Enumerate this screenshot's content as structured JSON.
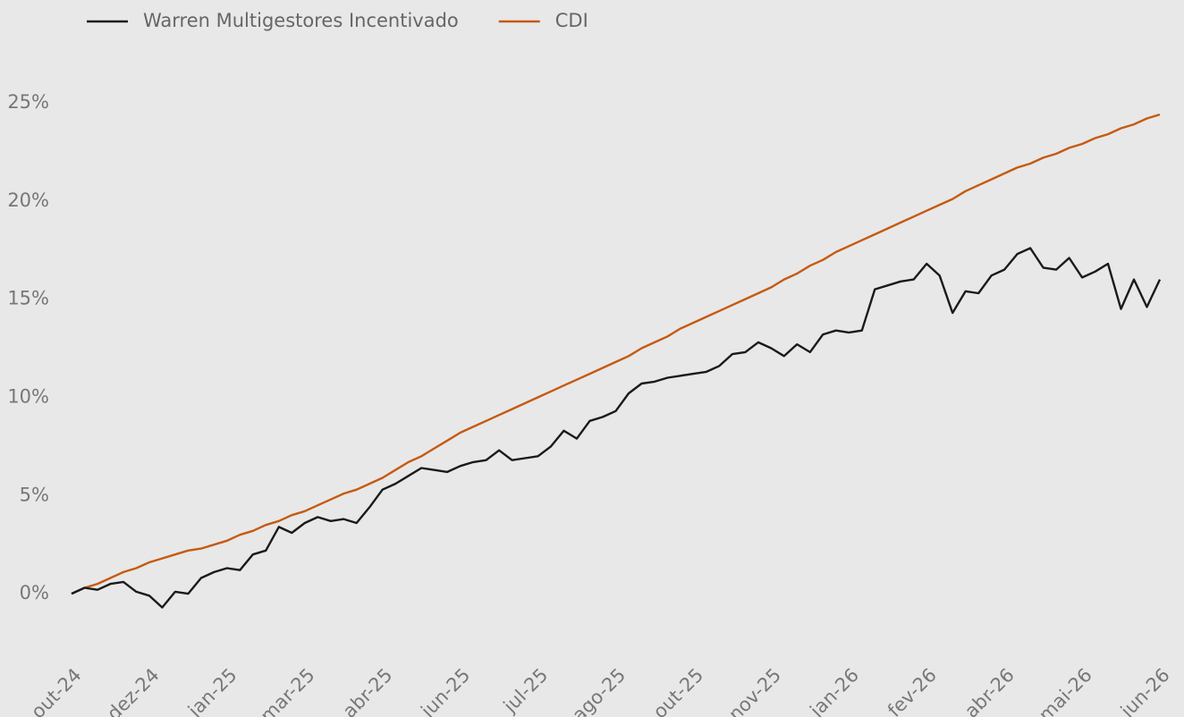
{
  "chart_data": {
    "type": "line",
    "categories": [
      "out-24",
      null,
      null,
      null,
      null,
      null,
      "dez-24",
      null,
      null,
      null,
      null,
      null,
      "jan-25",
      null,
      null,
      null,
      null,
      null,
      "mar-25",
      null,
      null,
      null,
      null,
      null,
      "abr-25",
      null,
      null,
      null,
      null,
      null,
      "jun-25",
      null,
      null,
      null,
      null,
      null,
      "jul-25",
      null,
      null,
      null,
      null,
      null,
      "ago-25",
      null,
      null,
      null,
      null,
      null,
      "out-25",
      null,
      null,
      null,
      null,
      null,
      "nov-25",
      null,
      null,
      null,
      null,
      null,
      "jan-26",
      null,
      null,
      null,
      null,
      null,
      "fev-26",
      null,
      null,
      null,
      null,
      null,
      "abr-26",
      null,
      null,
      null,
      null,
      null,
      "mai-26",
      null,
      null,
      null,
      null,
      null,
      "jun-26"
    ],
    "series": [
      {
        "name": "Warren Multigestores Incentivado",
        "color": "#1a1a1a",
        "values": [
          0,
          0.3,
          0.2,
          0.5,
          0.6,
          0.1,
          -0.1,
          -0.7,
          0.1,
          0,
          0.8,
          1.1,
          1.3,
          1.2,
          2.0,
          2.2,
          3.4,
          3.1,
          3.6,
          3.9,
          3.7,
          3.8,
          3.6,
          4.4,
          5.3,
          5.6,
          6.0,
          6.4,
          6.3,
          6.2,
          6.5,
          6.7,
          6.8,
          7.3,
          6.8,
          6.9,
          7.0,
          7.5,
          8.3,
          7.9,
          8.8,
          9.0,
          9.3,
          10.2,
          10.7,
          10.8,
          11.0,
          11.1,
          11.2,
          11.3,
          11.6,
          12.2,
          12.3,
          12.8,
          12.5,
          12.1,
          12.7,
          12.3,
          13.2,
          13.4,
          13.3,
          13.4,
          15.5,
          15.7,
          15.9,
          16.0,
          16.8,
          16.2,
          14.3,
          15.4,
          15.3,
          16.2,
          16.5,
          17.3,
          17.6,
          16.6,
          16.5,
          17.1,
          16.1,
          16.4,
          16.8,
          14.5,
          16.0,
          14.6,
          16.0
        ]
      },
      {
        "name": "CDI",
        "color": "#c55a11",
        "values": [
          0,
          0.3,
          0.5,
          0.8,
          1.1,
          1.3,
          1.6,
          1.8,
          2.0,
          2.2,
          2.3,
          2.5,
          2.7,
          3.0,
          3.2,
          3.5,
          3.7,
          4.0,
          4.2,
          4.5,
          4.8,
          5.1,
          5.3,
          5.6,
          5.9,
          6.3,
          6.7,
          7.0,
          7.4,
          7.8,
          8.2,
          8.5,
          8.8,
          9.1,
          9.4,
          9.7,
          10.0,
          10.3,
          10.6,
          10.9,
          11.2,
          11.5,
          11.8,
          12.1,
          12.5,
          12.8,
          13.1,
          13.5,
          13.8,
          14.1,
          14.4,
          14.7,
          15.0,
          15.3,
          15.6,
          16.0,
          16.3,
          16.7,
          17.0,
          17.4,
          17.7,
          18.0,
          18.3,
          18.6,
          18.9,
          19.2,
          19.5,
          19.8,
          20.1,
          20.5,
          20.8,
          21.1,
          21.4,
          21.7,
          21.9,
          22.2,
          22.4,
          22.7,
          22.9,
          23.2,
          23.4,
          23.7,
          23.9,
          24.2,
          24.4
        ]
      }
    ],
    "ylim": [
      -3,
      27.5
    ],
    "yticks": [
      {
        "value": 0,
        "label": "0%"
      },
      {
        "value": 5,
        "label": "5%"
      },
      {
        "value": 10,
        "label": "10%"
      },
      {
        "value": 15,
        "label": "15%"
      },
      {
        "value": 20,
        "label": "20%"
      },
      {
        "value": 25,
        "label": "25%"
      }
    ],
    "grid": false,
    "legend": "top"
  }
}
